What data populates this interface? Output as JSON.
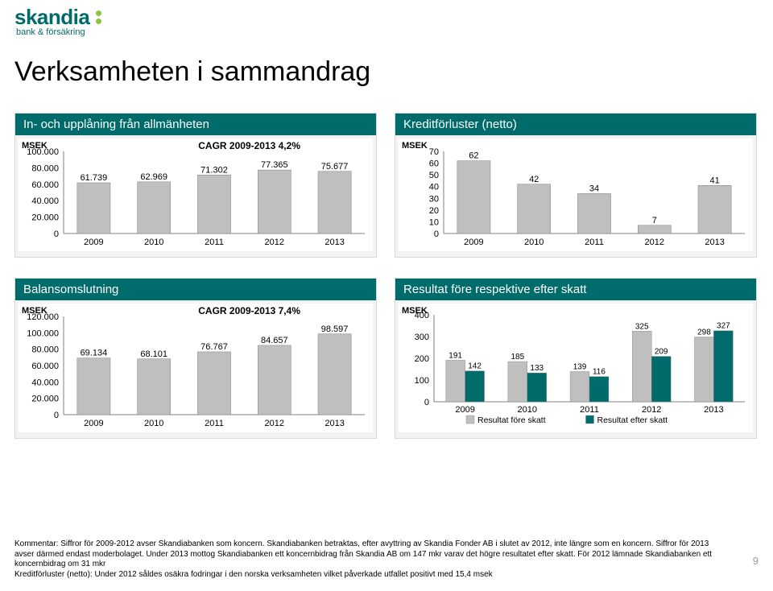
{
  "logo": {
    "word": "skandia",
    "sub": "bank & försäkring"
  },
  "title": "Verksamheten i sammandrag",
  "pagenum": "9",
  "years": [
    "2009",
    "2010",
    "2011",
    "2012",
    "2013"
  ],
  "colors": {
    "barGray": "#bfbfbf",
    "teal": "#006b6b",
    "border": "#808080",
    "grid": "#e0e0e0"
  },
  "panel1": {
    "title": "In- och upplåning från allmänheten",
    "ylabel": "MSEK",
    "cagr": "CAGR 2009-2013  4,2%",
    "ymax": 100000,
    "ystep": 20000,
    "yticks": [
      "100.000",
      "80.000",
      "60.000",
      "40.000",
      "20.000",
      "0"
    ],
    "values": [
      61739,
      62969,
      71302,
      77365,
      75677
    ],
    "value_labels": [
      "61.739",
      "62.969",
      "71.302",
      "77.365",
      "75.677"
    ]
  },
  "panel2": {
    "title": "Kreditförluster (netto)",
    "ylabel": "MSEK",
    "ymax": 70,
    "ystep": 10,
    "yticks": [
      "70",
      "60",
      "50",
      "40",
      "30",
      "20",
      "10",
      "0"
    ],
    "values": [
      62,
      42,
      34,
      7,
      41
    ],
    "value_labels": [
      "62",
      "42",
      "34",
      "7",
      "41"
    ]
  },
  "panel3": {
    "title": "Balansomslutning",
    "ylabel": "MSEK",
    "cagr": "CAGR 2009-2013  7,4%",
    "ymax": 120000,
    "ystep": 20000,
    "yticks": [
      "120.000",
      "100.000",
      "80.000",
      "60.000",
      "40.000",
      "20.000",
      "0"
    ],
    "values": [
      69134,
      68101,
      76767,
      84657,
      98597
    ],
    "value_labels": [
      "69.134",
      "68.101",
      "76.767",
      "84.657",
      "98.597"
    ]
  },
  "panel4": {
    "title": "Resultat före respektive efter skatt",
    "ylabel": "MSEK",
    "ymax": 400,
    "ystep": 100,
    "yticks": [
      "400",
      "300",
      "200",
      "100",
      "0"
    ],
    "series": [
      {
        "label": "Resultat före skatt",
        "color": "#bfbfbf",
        "values": [
          191,
          185,
          139,
          325,
          298
        ]
      },
      {
        "label": "Resultat efter skatt",
        "color": "#006b6b",
        "values": [
          142,
          133,
          116,
          209,
          327
        ]
      }
    ]
  },
  "footnote": [
    "Kommentar: Siffror för 2009-2012 avser Skandiabanken som koncern. Skandiabanken betraktas, efter avyttring av Skandia Fonder AB i slutet av 2012, inte längre som en koncern. Siffror för 2013 avser därmed endast moderbolaget. Under 2013 mottog Skandiabanken ett koncernbidrag från Skandia AB om 147 mkr varav det högre resultatet efter skatt. För 2012 lämnade Skandiabanken ett koncernbidrag om 31 mkr",
    "Kreditförluster (netto): Under 2012 såldes osäkra fodringar i den norska verksamheten vilket påverkade utfallet positivt med 15,4 msek"
  ]
}
